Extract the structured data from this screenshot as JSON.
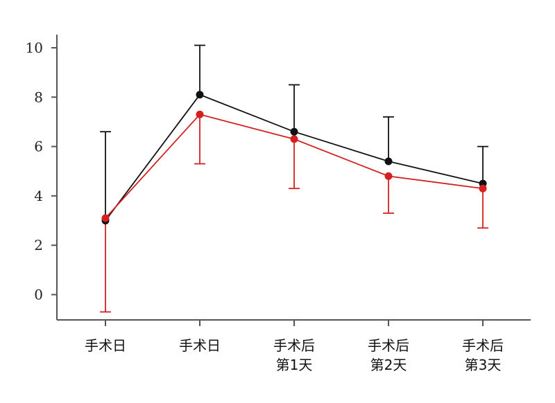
{
  "chart_data": {
    "type": "line",
    "title": "",
    "xlabel": "",
    "ylabel": "",
    "categories": [
      [
        "手术日"
      ],
      [
        "手术日"
      ],
      [
        "手术后",
        "第1天"
      ],
      [
        "手术后",
        "第2天"
      ],
      [
        "手术后",
        "第3天"
      ]
    ],
    "ylim": [
      -0.9,
      10.5
    ],
    "yticks": [
      0,
      2,
      4,
      6,
      8,
      10
    ],
    "yticklabels": [
      "0",
      "2",
      "4",
      "6",
      "8",
      "10"
    ],
    "grid": false,
    "legend": "none",
    "series": [
      {
        "color": "#111111",
        "values": [
          3.0,
          8.1,
          6.6,
          5.4,
          4.5
        ],
        "error_upper": [
          6.6,
          10.1,
          8.5,
          7.2,
          6.0
        ],
        "error_lower": [
          null,
          null,
          null,
          null,
          null
        ]
      },
      {
        "color": "#d42020",
        "values": [
          3.1,
          7.3,
          6.3,
          4.8,
          4.3
        ],
        "error_upper": [
          null,
          null,
          null,
          null,
          null
        ],
        "error_lower": [
          -0.7,
          5.3,
          4.3,
          3.3,
          2.7
        ]
      }
    ]
  }
}
